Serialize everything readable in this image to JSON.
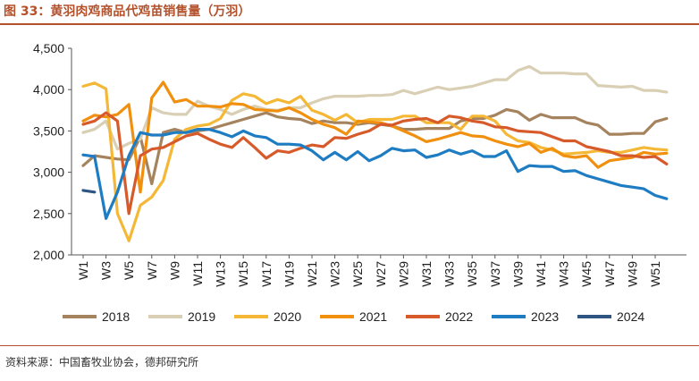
{
  "title": "图 33：黄羽肉鸡商品代鸡苗销售量（万羽）",
  "source": "资料来源：中国畜牧业协会，德邦研究所",
  "chart_data": {
    "type": "line",
    "ylim": [
      2000,
      4500
    ],
    "yticks": [
      2000,
      2500,
      3000,
      3500,
      4000,
      4500
    ],
    "ytick_labels": [
      "2,000",
      "2,500",
      "3,000",
      "3,500",
      "4,000",
      "4,500"
    ],
    "x": [
      "W1",
      "W2",
      "W3",
      "W4",
      "W5",
      "W6",
      "W7",
      "W8",
      "W9",
      "W10",
      "W11",
      "W12",
      "W13",
      "W14",
      "W15",
      "W16",
      "W17",
      "W18",
      "W19",
      "W20",
      "W21",
      "W22",
      "W23",
      "W24",
      "W25",
      "W26",
      "W27",
      "W28",
      "W29",
      "W30",
      "W31",
      "W32",
      "W33",
      "W34",
      "W35",
      "W36",
      "W37",
      "W38",
      "W39",
      "W40",
      "W41",
      "W42",
      "W43",
      "W44",
      "W45",
      "W46",
      "W47",
      "W48",
      "W49",
      "W50",
      "W51",
      "W52"
    ],
    "xtick_labels": [
      "W1",
      "W3",
      "W5",
      "W7",
      "W9",
      "W11",
      "W13",
      "W15",
      "W17",
      "W19",
      "W21",
      "W23",
      "W25",
      "W27",
      "W29",
      "W31",
      "W33",
      "W35",
      "W37",
      "W39",
      "W41",
      "W43",
      "W45",
      "W47",
      "W49",
      "W51"
    ],
    "grid": false,
    "legend_position": "bottom",
    "series": [
      {
        "name": "2018",
        "color": "#a5835e",
        "values": [
          3080,
          3200,
          3180,
          3160,
          3150,
          3430,
          2860,
          3480,
          3520,
          3480,
          3500,
          3520,
          3560,
          3600,
          3640,
          3680,
          3720,
          3670,
          3650,
          3640,
          3590,
          3620,
          3600,
          3600,
          3580,
          3600,
          3580,
          3560,
          3520,
          3520,
          3530,
          3530,
          3530,
          3620,
          3650,
          3650,
          3690,
          3760,
          3730,
          3630,
          3700,
          3660,
          3660,
          3660,
          3600,
          3570,
          3460,
          3460,
          3470,
          3470,
          3610,
          3650
        ]
      },
      {
        "name": "2019",
        "color": "#d9cfb5",
        "values": [
          3480,
          3520,
          3620,
          3280,
          3350,
          3400,
          3780,
          3720,
          3700,
          3700,
          3860,
          3800,
          3760,
          3700,
          3760,
          3800,
          3760,
          3750,
          3780,
          3780,
          3840,
          3890,
          3920,
          3920,
          3920,
          3930,
          3930,
          3940,
          3990,
          3950,
          3990,
          4030,
          4000,
          4020,
          4040,
          4080,
          4120,
          4120,
          4230,
          4280,
          4200,
          4200,
          4200,
          4190,
          4190,
          4050,
          4040,
          4030,
          4040,
          3990,
          3990,
          3970
        ]
      },
      {
        "name": "2020",
        "color": "#f5b836",
        "values": [
          4040,
          4080,
          4010,
          2500,
          2170,
          2600,
          2700,
          2900,
          3400,
          3520,
          3560,
          3580,
          3650,
          3870,
          3950,
          3920,
          3830,
          3880,
          3840,
          3920,
          3750,
          3700,
          3630,
          3700,
          3600,
          3640,
          3640,
          3640,
          3680,
          3680,
          3600,
          3600,
          3600,
          3520,
          3680,
          3680,
          3620,
          3460,
          3380,
          3360,
          3300,
          3270,
          3220,
          3230,
          3240,
          3260,
          3240,
          3240,
          3270,
          3300,
          3280,
          3270
        ]
      },
      {
        "name": "2021",
        "color": "#f0900e",
        "values": [
          3620,
          3690,
          3670,
          3700,
          3820,
          2760,
          3900,
          4090,
          3850,
          3880,
          3800,
          3800,
          3790,
          3830,
          3820,
          3760,
          3750,
          3740,
          3780,
          3720,
          3640,
          3580,
          3540,
          3460,
          3620,
          3610,
          3600,
          3560,
          3500,
          3440,
          3370,
          3400,
          3440,
          3480,
          3440,
          3430,
          3380,
          3340,
          3310,
          3350,
          3240,
          3290,
          3200,
          3180,
          3200,
          3060,
          3140,
          3160,
          3180,
          3240,
          3220,
          3230
        ]
      },
      {
        "name": "2022",
        "color": "#d75b2a",
        "values": [
          3580,
          3620,
          3720,
          3620,
          2500,
          3200,
          3280,
          3300,
          3370,
          3440,
          3470,
          3400,
          3340,
          3300,
          3420,
          3300,
          3170,
          3260,
          3240,
          3290,
          3330,
          3310,
          3420,
          3410,
          3460,
          3500,
          3580,
          3570,
          3620,
          3640,
          3650,
          3600,
          3680,
          3660,
          3620,
          3600,
          3550,
          3540,
          3500,
          3490,
          3480,
          3430,
          3380,
          3380,
          3310,
          3280,
          3250,
          3200,
          3200,
          3180,
          3190,
          3100
        ]
      },
      {
        "name": "2023",
        "color": "#1e7cc2",
        "values": [
          3210,
          3190,
          2440,
          2760,
          3200,
          3480,
          3450,
          3450,
          3480,
          3480,
          3520,
          3520,
          3480,
          3430,
          3500,
          3440,
          3420,
          3340,
          3340,
          3330,
          3260,
          3150,
          3240,
          3150,
          3250,
          3140,
          3200,
          3290,
          3260,
          3270,
          3180,
          3210,
          3270,
          3220,
          3260,
          3190,
          3190,
          3260,
          3010,
          3080,
          3070,
          3070,
          3010,
          3020,
          2960,
          2920,
          2880,
          2840,
          2820,
          2800,
          2720,
          2680
        ]
      },
      {
        "name": "2024",
        "color": "#2f5583",
        "values": [
          2780,
          2760,
          null,
          null,
          null,
          null,
          null,
          null,
          null,
          null,
          null,
          null,
          null,
          null,
          null,
          null,
          null,
          null,
          null,
          null,
          null,
          null,
          null,
          null,
          null,
          null,
          null,
          null,
          null,
          null,
          null,
          null,
          null,
          null,
          null,
          null,
          null,
          null,
          null,
          null,
          null,
          null,
          null,
          null,
          null,
          null,
          null,
          null,
          null,
          null,
          null,
          null
        ]
      }
    ]
  }
}
